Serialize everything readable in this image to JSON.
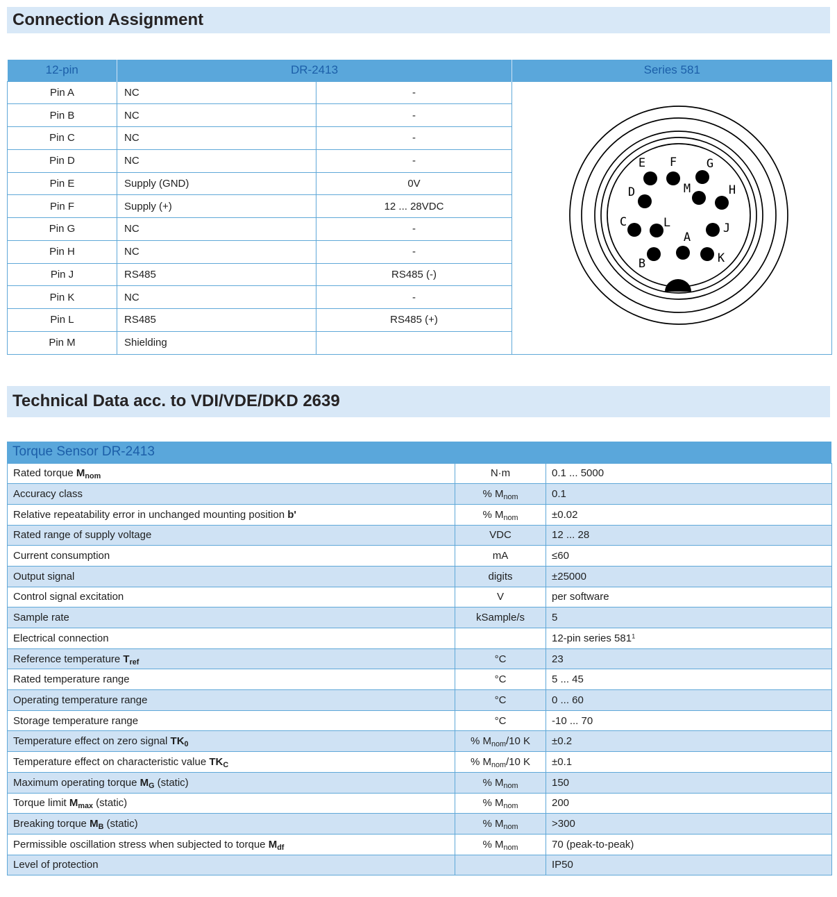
{
  "sections": [
    {
      "title": "Connection Assignment"
    },
    {
      "title": "Technical Data acc. to VDI/VDE/DKD 2639"
    }
  ],
  "colors": {
    "header_bg": "#5aa7db",
    "header_text": "#1c5fa9",
    "section_bar_bg": "#d8e8f7",
    "row_alt_bg": "#cfe2f4",
    "border_color": "#5fa8d8",
    "body_text": "#1f1f1f"
  },
  "pin_table": {
    "headers": [
      "12-pin",
      "DR-2413",
      "Series 581"
    ],
    "rows": [
      {
        "pin": "Pin A",
        "function": "NC",
        "value": "-"
      },
      {
        "pin": "Pin B",
        "function": "NC",
        "value": "-"
      },
      {
        "pin": "Pin C",
        "function": "NC",
        "value": "-"
      },
      {
        "pin": "Pin D",
        "function": "NC",
        "value": "-"
      },
      {
        "pin": "Pin E",
        "function": "Supply (GND)",
        "value": "0V"
      },
      {
        "pin": "Pin F",
        "function": "Supply (+)",
        "value": "12 ... 28VDC"
      },
      {
        "pin": "Pin G",
        "function": "NC",
        "value": "-"
      },
      {
        "pin": "Pin H",
        "function": "NC",
        "value": "-"
      },
      {
        "pin": "Pin J",
        "function": "RS485",
        "value": "RS485 (-)"
      },
      {
        "pin": "Pin K",
        "function": "NC",
        "value": "-"
      },
      {
        "pin": "Pin L",
        "function": "RS485",
        "value": "RS485 (+)"
      },
      {
        "pin": "Pin M",
        "function": "Shielding",
        "value": ""
      }
    ]
  },
  "connector": {
    "pin_labels": [
      "E",
      "F",
      "G",
      "D",
      "M",
      "H",
      "C",
      "L",
      "J",
      "A",
      "B",
      "K"
    ]
  },
  "tech_table": {
    "title": "Torque Sensor DR-2413",
    "rows": [
      {
        "param": [
          {
            "t": "Rated torque "
          },
          {
            "t": "M",
            "b": true
          },
          {
            "t": "nom",
            "b": true,
            "sub": true
          }
        ],
        "unit": [
          {
            "t": "N·m"
          }
        ],
        "value": [
          {
            "t": "0.1 ... 5000"
          }
        ]
      },
      {
        "param": [
          {
            "t": "Accuracy class"
          }
        ],
        "unit": [
          {
            "t": "% M"
          },
          {
            "t": "nom",
            "sub": true
          }
        ],
        "value": [
          {
            "t": "0.1"
          }
        ]
      },
      {
        "param": [
          {
            "t": "Relative repeatability error in unchanged mounting position "
          },
          {
            "t": "b'",
            "b": true
          }
        ],
        "unit": [
          {
            "t": "% M"
          },
          {
            "t": "nom",
            "sub": true
          }
        ],
        "value": [
          {
            "t": "±0.02"
          }
        ]
      },
      {
        "param": [
          {
            "t": "Rated range of supply voltage"
          }
        ],
        "unit": [
          {
            "t": "VDC"
          }
        ],
        "value": [
          {
            "t": "12 ... 28"
          }
        ]
      },
      {
        "param": [
          {
            "t": "Current consumption"
          }
        ],
        "unit": [
          {
            "t": "mA"
          }
        ],
        "value": [
          {
            "t": "≤60"
          }
        ]
      },
      {
        "param": [
          {
            "t": "Output signal"
          }
        ],
        "unit": [
          {
            "t": "digits"
          }
        ],
        "value": [
          {
            "t": "±25000"
          }
        ]
      },
      {
        "param": [
          {
            "t": "Control signal excitation"
          }
        ],
        "unit": [
          {
            "t": "V"
          }
        ],
        "value": [
          {
            "t": "per software"
          }
        ]
      },
      {
        "param": [
          {
            "t": "Sample rate"
          }
        ],
        "unit": [
          {
            "t": "kSample/s"
          }
        ],
        "value": [
          {
            "t": "5"
          }
        ]
      },
      {
        "param": [
          {
            "t": "Electrical connection"
          }
        ],
        "unit": [],
        "value": [
          {
            "t": "12-pin series 581"
          },
          {
            "t": "1",
            "sup": true
          }
        ]
      },
      {
        "param": [
          {
            "t": "Reference temperature "
          },
          {
            "t": "T",
            "b": true
          },
          {
            "t": "ref",
            "b": true,
            "sub": true
          }
        ],
        "unit": [
          {
            "t": "°C"
          }
        ],
        "value": [
          {
            "t": "23"
          }
        ]
      },
      {
        "param": [
          {
            "t": "Rated temperature range"
          }
        ],
        "unit": [
          {
            "t": "°C"
          }
        ],
        "value": [
          {
            "t": "5 ... 45"
          }
        ]
      },
      {
        "param": [
          {
            "t": "Operating temperature range"
          }
        ],
        "unit": [
          {
            "t": "°C"
          }
        ],
        "value": [
          {
            "t": "0 ... 60"
          }
        ]
      },
      {
        "param": [
          {
            "t": "Storage temperature range"
          }
        ],
        "unit": [
          {
            "t": "°C"
          }
        ],
        "value": [
          {
            "t": "-10 ... 70"
          }
        ]
      },
      {
        "param": [
          {
            "t": "Temperature effect on zero signal "
          },
          {
            "t": "TK",
            "b": true
          },
          {
            "t": "0",
            "b": true,
            "sub": true
          }
        ],
        "unit": [
          {
            "t": "% M"
          },
          {
            "t": "nom",
            "sub": true
          },
          {
            "t": "/10 K"
          }
        ],
        "value": [
          {
            "t": "±0.2"
          }
        ]
      },
      {
        "param": [
          {
            "t": "Temperature effect on characteristic value "
          },
          {
            "t": "TK",
            "b": true
          },
          {
            "t": "C",
            "b": true,
            "sub": true
          }
        ],
        "unit": [
          {
            "t": "% M"
          },
          {
            "t": "nom",
            "sub": true
          },
          {
            "t": "/10 K"
          }
        ],
        "value": [
          {
            "t": "±0.1"
          }
        ]
      },
      {
        "param": [
          {
            "t": "Maximum operating torque "
          },
          {
            "t": "M",
            "b": true
          },
          {
            "t": "G",
            "b": true,
            "sub": true
          },
          {
            "t": " (static)"
          }
        ],
        "unit": [
          {
            "t": "% M"
          },
          {
            "t": "nom",
            "sub": true
          }
        ],
        "value": [
          {
            "t": "150"
          }
        ]
      },
      {
        "param": [
          {
            "t": "Torque limit "
          },
          {
            "t": "M",
            "b": true
          },
          {
            "t": "max",
            "b": true,
            "sub": true
          },
          {
            "t": " (static)"
          }
        ],
        "unit": [
          {
            "t": "% M"
          },
          {
            "t": "nom",
            "sub": true
          }
        ],
        "value": [
          {
            "t": "200"
          }
        ]
      },
      {
        "param": [
          {
            "t": "Breaking torque "
          },
          {
            "t": "M",
            "b": true
          },
          {
            "t": "B",
            "b": true,
            "sub": true
          },
          {
            "t": " (static)"
          }
        ],
        "unit": [
          {
            "t": "% M"
          },
          {
            "t": "nom",
            "sub": true
          }
        ],
        "value": [
          {
            "t": ">300"
          }
        ]
      },
      {
        "param": [
          {
            "t": "Permissible oscillation stress when subjected to torque "
          },
          {
            "t": "M",
            "b": true
          },
          {
            "t": "df",
            "b": true,
            "sub": true
          }
        ],
        "unit": [
          {
            "t": "% M"
          },
          {
            "t": "nom",
            "sub": true
          }
        ],
        "value": [
          {
            "t": "70 (peak-to-peak)"
          }
        ]
      },
      {
        "param": [
          {
            "t": "Level of protection"
          }
        ],
        "unit": [],
        "value": [
          {
            "t": "IP50"
          }
        ]
      }
    ]
  }
}
